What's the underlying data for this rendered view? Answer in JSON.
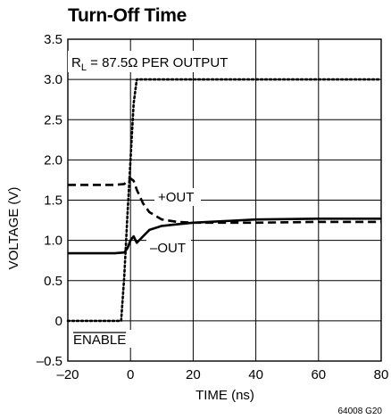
{
  "chart_data": {
    "type": "line",
    "title": "Turn-Off Time",
    "xlabel": "TIME (ns)",
    "ylabel": "VOLTAGE (V)",
    "xlim": [
      -20,
      80
    ],
    "ylim": [
      -0.5,
      3.5
    ],
    "xticks": [
      -20,
      0,
      20,
      40,
      60,
      80
    ],
    "yticks": [
      -0.5,
      0,
      0.5,
      1.0,
      1.5,
      2.0,
      2.5,
      3.0,
      3.5
    ],
    "xtick_labels": [
      "–20",
      "0",
      "20",
      "40",
      "60",
      "80"
    ],
    "ytick_labels": [
      "–0.5",
      "0",
      "0.5",
      "1.0",
      "1.5",
      "2.0",
      "2.5",
      "3.0",
      "3.5"
    ],
    "grid": true,
    "condition": {
      "prefix": "R",
      "subscript": "L",
      "rest": " = 87.5Ω PER OUTPUT"
    },
    "figure_number": "64008 G20",
    "series": [
      {
        "name": "ENABLE",
        "label_overline": true,
        "style": "dotted",
        "x": [
          -20,
          -3,
          -2,
          -1,
          0,
          1,
          2,
          80
        ],
        "y": [
          0,
          0,
          0.55,
          1.3,
          2.0,
          2.7,
          3.0,
          3.0
        ]
      },
      {
        "name": "+OUT",
        "style": "dashed",
        "x": [
          -20,
          -5,
          -2,
          0,
          1,
          2,
          4,
          6,
          10,
          15,
          20,
          40,
          60,
          80
        ],
        "y": [
          1.69,
          1.69,
          1.7,
          1.77,
          1.74,
          1.63,
          1.46,
          1.35,
          1.26,
          1.23,
          1.22,
          1.22,
          1.23,
          1.23
        ]
      },
      {
        "name": "–OUT",
        "style": "solid",
        "x": [
          -20,
          -5,
          -2,
          -1,
          0,
          1,
          2,
          4,
          6,
          10,
          15,
          20,
          40,
          60,
          80
        ],
        "y": [
          0.84,
          0.84,
          0.85,
          0.9,
          1.0,
          1.05,
          0.97,
          1.05,
          1.13,
          1.18,
          1.2,
          1.22,
          1.26,
          1.27,
          1.27
        ]
      }
    ]
  }
}
